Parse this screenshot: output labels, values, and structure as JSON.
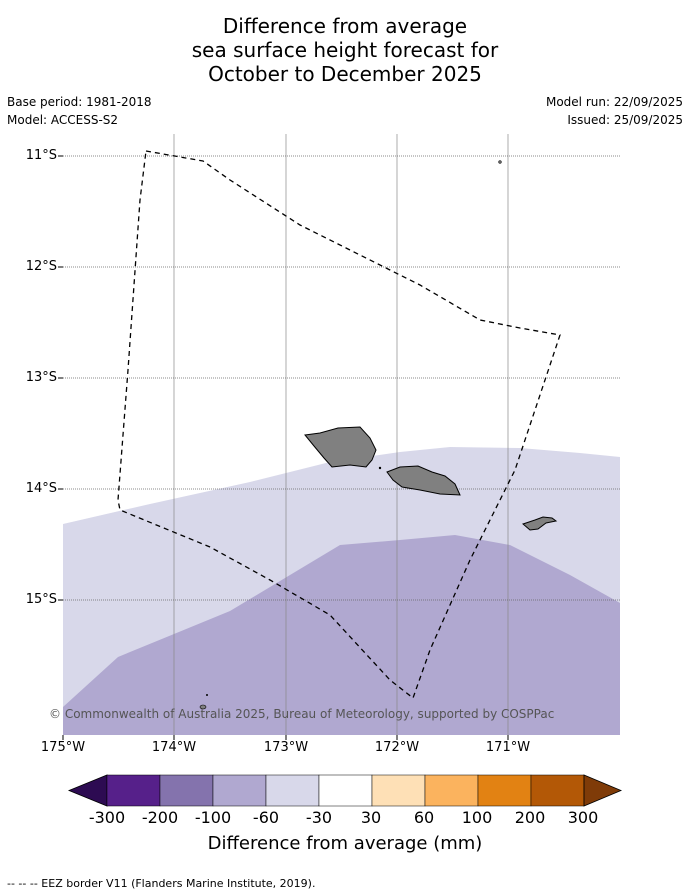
{
  "title_lines": [
    "Difference from average",
    "sea surface height forecast for",
    "October to December 2025"
  ],
  "base_period": "Base period: 1981-2018",
  "model": "Model: ACCESS-S2",
  "model_run": "Model run: 22/09/2025",
  "issued": "Issued: 25/09/2025",
  "lat_labels": [
    "11°S",
    "12°S",
    "13°S",
    "14°S",
    "15°S"
  ],
  "lon_labels": [
    "175°W",
    "174°W",
    "173°W",
    "172°W",
    "171°W"
  ],
  "copyright": "© Commonwealth of Australia 2025, Bureau of Meteorology, supported by COSPPac",
  "colorbar": {
    "ticks": [
      "-300",
      "-200",
      "-100",
      "-60",
      "-30",
      "30",
      "60",
      "100",
      "200",
      "300"
    ],
    "colors": [
      "#2d0b52",
      "#56208a",
      "#8473ad",
      "#b0a8d0",
      "#d8d8ea",
      "#ffffff",
      "#fee0b6",
      "#fbb35e",
      "#e28213",
      "#b35806",
      "#7f3b08"
    ],
    "label": "Difference from average (mm)"
  },
  "footer": "--  --  -- EEZ border V11 (Flanders Marine Institute, 2019).",
  "colors": {
    "land": "#808080",
    "grid": "#888888",
    "light_band": "#d8d8ea",
    "mid_band": "#b0a8d0"
  }
}
